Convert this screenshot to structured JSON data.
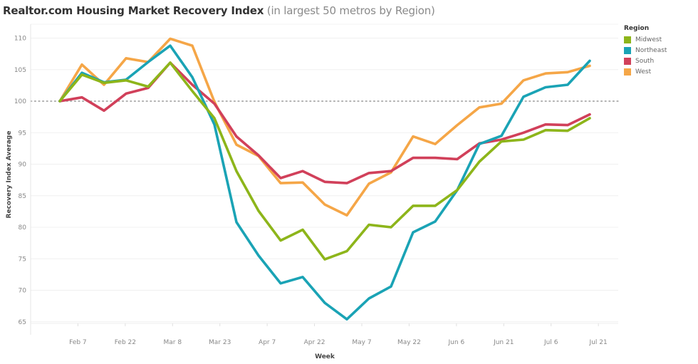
{
  "header": {
    "title": "Realtor.com Housing Market Recovery Index",
    "subtitle": "(in largest 50 metros by Region)"
  },
  "legend": {
    "title": "Region",
    "items": [
      {
        "label": "Midwest",
        "color": "#8db51a"
      },
      {
        "label": "Northeast",
        "color": "#1aa3b5"
      },
      {
        "label": "South",
        "color": "#d1405a"
      },
      {
        "label": "West",
        "color": "#f5a647"
      }
    ]
  },
  "chart_data": {
    "type": "line",
    "title": "Realtor.com Housing Market Recovery Index (in largest 50 metros by Region)",
    "xlabel": "Week",
    "ylabel": "Recovery Index Average",
    "ylim": [
      63.5,
      111.5
    ],
    "yticks": [
      65,
      70,
      75,
      80,
      85,
      90,
      95,
      100,
      105,
      110
    ],
    "xtick_labels": [
      "Feb 7",
      "Feb 22",
      "Mar 8",
      "Mar 23",
      "Apr 7",
      "Apr 22",
      "May 7",
      "May 22",
      "Jun 6",
      "Jun 21",
      "Jul 6",
      "Jul 21"
    ],
    "reference_line": {
      "value": 100,
      "style": "dotted"
    },
    "grid": true,
    "legend_position": "top-right",
    "x_points": 25,
    "series": [
      {
        "name": "Midwest",
        "color": "#8db51a",
        "values": [
          100,
          104.2,
          102.9,
          103.3,
          102.3,
          106.1,
          101.6,
          97.3,
          88.9,
          82.6,
          77.9,
          79.6,
          74.9,
          76.2,
          80.4,
          80.0,
          83.4,
          83.4,
          85.9,
          90.4,
          93.6,
          93.9,
          95.4,
          95.3,
          97.3
        ]
      },
      {
        "name": "Northeast",
        "color": "#1aa3b5",
        "values": [
          100,
          104.5,
          103.0,
          103.4,
          106.2,
          108.8,
          103.8,
          96.3,
          80.8,
          75.5,
          71.1,
          72.1,
          68.0,
          65.4,
          68.7,
          70.6,
          79.2,
          80.9,
          85.9,
          93.2,
          94.5,
          100.7,
          102.2,
          102.6,
          106.4
        ]
      },
      {
        "name": "South",
        "color": "#d1405a",
        "values": [
          100,
          100.6,
          98.5,
          101.2,
          102.1,
          106.1,
          102.6,
          99.6,
          94.4,
          91.4,
          87.8,
          88.9,
          87.2,
          87.0,
          88.6,
          88.9,
          91.0,
          91.0,
          90.8,
          93.3,
          93.9,
          95.0,
          96.3,
          96.2,
          97.9
        ]
      },
      {
        "name": "West",
        "color": "#f5a647",
        "values": [
          100,
          105.8,
          102.6,
          106.8,
          106.2,
          109.9,
          108.8,
          99.9,
          93.1,
          91.3,
          87.0,
          87.1,
          83.6,
          81.9,
          86.9,
          88.7,
          94.4,
          93.2,
          96.2,
          99.0,
          99.6,
          103.3,
          104.4,
          104.6,
          105.6
        ]
      }
    ]
  }
}
